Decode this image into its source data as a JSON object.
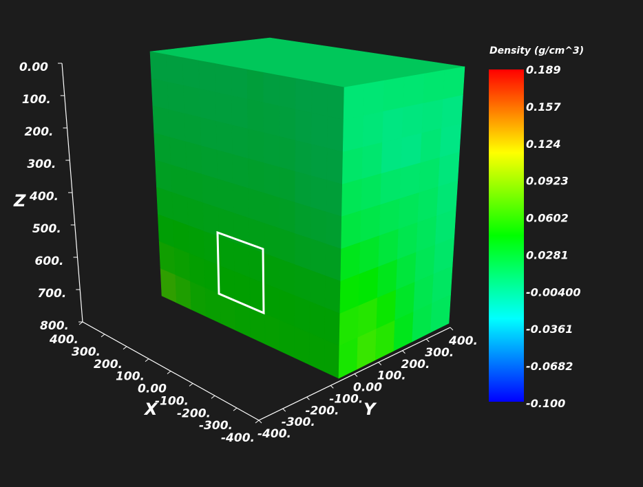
{
  "chart_data": {
    "type": "3d-volume",
    "axes": {
      "x": {
        "title": "X",
        "range": [
          -400,
          400
        ],
        "ticks": [
          400,
          300,
          200,
          100,
          0,
          -100,
          -200,
          -300,
          -400
        ],
        "tick_labels": [
          "400.",
          "300.",
          "200.",
          "100.",
          "0.00",
          "-100.",
          "-200.",
          "-300.",
          "-400."
        ]
      },
      "y": {
        "title": "Y",
        "range": [
          -400,
          400
        ],
        "ticks": [
          -400,
          -300,
          -200,
          -100,
          0,
          100,
          200,
          300,
          400
        ],
        "tick_labels": [
          "-400.",
          "-300.",
          "-200.",
          "-100.",
          "0.00",
          "100.",
          "200.",
          "300.",
          "400."
        ]
      },
      "z": {
        "title": "Z",
        "range": [
          0,
          800
        ],
        "ticks": [
          0,
          100,
          200,
          300,
          400,
          500,
          600,
          700,
          800
        ],
        "tick_labels": [
          "0.00",
          "100.",
          "200.",
          "300.",
          "400.",
          "500.",
          "600.",
          "700.",
          "800."
        ]
      }
    },
    "colorbar": {
      "title": "Density (g/cm^3)",
      "range": [
        -0.1,
        0.189
      ],
      "labels": [
        "0.189",
        "0.157",
        "0.124",
        "0.0923",
        "0.0602",
        "0.0281",
        "-0.00400",
        "-0.0361",
        "-0.0682",
        "-0.100"
      ],
      "colors": [
        "#0000ff",
        "#0080ff",
        "#00ffff",
        "#00ff80",
        "#00ff00",
        "#80ff00",
        "#ffff00",
        "#ff8000",
        "#ff0000"
      ]
    },
    "volume": {
      "front_face_rows": [
        [
          0.016,
          0.016,
          0.016,
          0.016,
          0.016,
          0.016,
          0.018,
          0.016,
          0.016,
          0.014,
          0.014,
          0.014
        ],
        [
          0.018,
          0.018,
          0.018,
          0.017,
          0.017,
          0.017,
          0.019,
          0.018,
          0.017,
          0.015,
          0.014,
          0.014
        ],
        [
          0.021,
          0.021,
          0.021,
          0.02,
          0.02,
          0.02,
          0.021,
          0.02,
          0.02,
          0.017,
          0.016,
          0.016
        ],
        [
          0.025,
          0.025,
          0.025,
          0.024,
          0.024,
          0.024,
          0.025,
          0.024,
          0.024,
          0.02,
          0.019,
          0.019
        ],
        [
          0.029,
          0.03,
          0.03,
          0.029,
          0.029,
          0.029,
          0.029,
          0.029,
          0.028,
          0.025,
          0.024,
          0.023
        ],
        [
          0.035,
          0.035,
          0.035,
          0.034,
          0.034,
          0.034,
          0.034,
          0.034,
          0.033,
          0.031,
          0.03,
          0.03
        ],
        [
          0.042,
          0.043,
          0.042,
          0.041,
          0.041,
          0.041,
          0.041,
          0.041,
          0.04,
          0.039,
          0.038,
          0.038
        ],
        [
          0.052,
          0.049,
          0.046,
          0.045,
          0.045,
          0.045,
          0.045,
          0.044,
          0.044,
          0.043,
          0.043,
          0.043
        ],
        [
          0.066,
          0.058,
          0.05,
          0.048,
          0.048,
          0.047,
          0.047,
          0.047,
          0.046,
          0.046,
          0.046,
          0.046
        ]
      ],
      "side_face_rows": [
        [
          0.008,
          0.008,
          0.009,
          0.009,
          0.01,
          0.01
        ],
        [
          0.008,
          0.007,
          0.004,
          0.005,
          0.006,
          0.004
        ],
        [
          0.012,
          0.01,
          0.004,
          0.003,
          0.008,
          0.003
        ],
        [
          0.018,
          0.016,
          0.012,
          0.011,
          0.012,
          0.006
        ],
        [
          0.024,
          0.022,
          0.019,
          0.017,
          0.014,
          0.008
        ],
        [
          0.036,
          0.032,
          0.026,
          0.02,
          0.016,
          0.01
        ],
        [
          0.046,
          0.044,
          0.036,
          0.026,
          0.018,
          0.012
        ],
        [
          0.054,
          0.056,
          0.048,
          0.032,
          0.02,
          0.014
        ],
        [
          0.052,
          0.062,
          0.056,
          0.036,
          0.022,
          0.016
        ]
      ],
      "top_face_value": 0.012
    }
  }
}
